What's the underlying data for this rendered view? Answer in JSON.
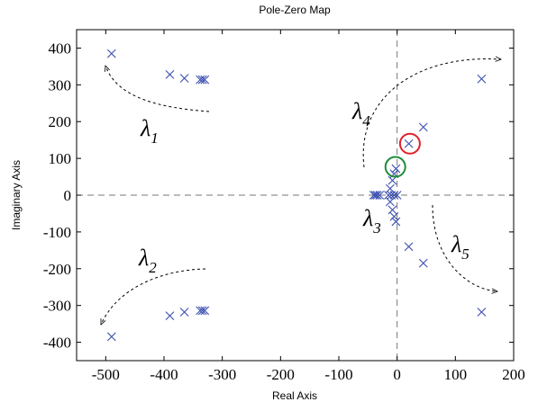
{
  "chart_data": {
    "type": "scatter",
    "title": "Pole-Zero Map",
    "xlabel": "Real Axis",
    "ylabel": "Imaginary Axis",
    "xlim": [
      -550,
      200
    ],
    "ylim": [
      -450,
      450
    ],
    "xticks": [
      -500,
      -400,
      -300,
      -200,
      -100,
      0,
      100,
      200
    ],
    "yticks": [
      400,
      300,
      200,
      100,
      0,
      -100,
      -200,
      -300,
      -400
    ],
    "xtick_labels": [
      "-500",
      "-400",
      "-300",
      "-200",
      "-100",
      "0",
      "100",
      "200"
    ],
    "ytick_labels": [
      "400",
      "300",
      "200",
      "100",
      "0",
      "-100",
      "-200",
      "-300",
      "-400"
    ],
    "grid": false,
    "reference_lines": {
      "x": 0,
      "y": 0,
      "style": "dashed"
    },
    "marker_color": "#3a4fb0",
    "highlight_colors": {
      "red": "#e0202a",
      "green": "#1e8c3a"
    },
    "poles": [
      [
        -490,
        385
      ],
      [
        -390,
        328
      ],
      [
        -365,
        318
      ],
      [
        -338,
        314
      ],
      [
        -334,
        314
      ],
      [
        -330,
        314
      ],
      [
        -490,
        -385
      ],
      [
        -390,
        -328
      ],
      [
        -365,
        -318
      ],
      [
        -338,
        -314
      ],
      [
        -334,
        -314
      ],
      [
        -330,
        -314
      ],
      [
        145,
        316
      ],
      [
        145,
        -318
      ],
      [
        45,
        185
      ],
      [
        20,
        140
      ],
      [
        20,
        -140
      ],
      [
        45,
        -185
      ],
      [
        -40,
        0
      ],
      [
        -37,
        0
      ],
      [
        -34,
        0
      ],
      [
        -30,
        0
      ],
      [
        -15,
        0
      ],
      [
        -10,
        0
      ],
      [
        0,
        0
      ],
      [
        -5,
        0
      ],
      [
        -12,
        18
      ],
      [
        -12,
        -18
      ],
      [
        -8,
        40
      ],
      [
        -8,
        -40
      ],
      [
        -5,
        58
      ],
      [
        -5,
        -58
      ],
      [
        -2,
        72
      ],
      [
        -2,
        -72
      ]
    ],
    "highlights": [
      {
        "color": "red",
        "x": 22,
        "y": 140
      },
      {
        "color": "green",
        "x": -3,
        "y": 77
      }
    ],
    "annotations": [
      {
        "name": "lambda-1",
        "symbol": "λ",
        "sub": "1"
      },
      {
        "name": "lambda-2",
        "symbol": "λ",
        "sub": "2"
      },
      {
        "name": "lambda-3",
        "symbol": "λ",
        "sub": "3"
      },
      {
        "name": "lambda-4",
        "symbol": "λ",
        "sub": "4"
      },
      {
        "name": "lambda-5",
        "symbol": "λ",
        "sub": "5"
      }
    ]
  }
}
